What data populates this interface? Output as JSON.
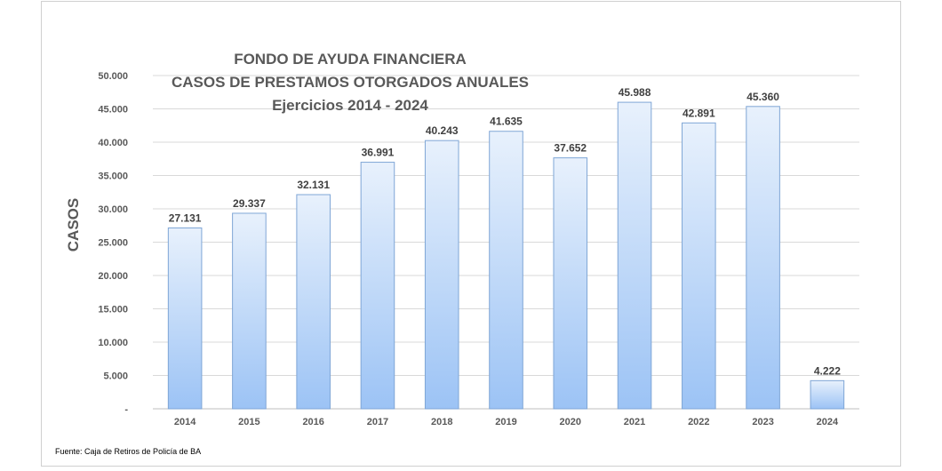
{
  "chart_data": {
    "type": "bar",
    "title_lines": [
      "FONDO DE AYUDA FINANCIERA",
      "CASOS DE PRESTAMOS OTORGADOS ANUALES",
      "Ejercicios  2014 - 2024"
    ],
    "ylabel": "CASOS",
    "xlabel": "",
    "categories": [
      "2014",
      "2015",
      "2016",
      "2017",
      "2018",
      "2019",
      "2020",
      "2021",
      "2022",
      "2023",
      "2024"
    ],
    "values": [
      27131,
      29337,
      32131,
      36991,
      40243,
      41635,
      37652,
      45988,
      42891,
      45360,
      4222
    ],
    "value_labels": [
      "27.131",
      "29.337",
      "32.131",
      "36.991",
      "40.243",
      "41.635",
      "37.652",
      "45.988",
      "42.891",
      "45.360",
      "4.222"
    ],
    "ylim": [
      0,
      50000
    ],
    "yticks": [
      0,
      5000,
      10000,
      15000,
      20000,
      25000,
      30000,
      35000,
      40000,
      45000,
      50000
    ],
    "ytick_labels": [
      "-",
      "5.000",
      "10.000",
      "15.000",
      "20.000",
      "25.000",
      "30.000",
      "35.000",
      "40.000",
      "45.000",
      "50.000"
    ],
    "grid": true,
    "bar_fill_top": "#e8f1fc",
    "bar_fill_bottom": "#9cc3f5",
    "bar_stroke": "#7fa6d6",
    "source": "Fuente: Caja de Retiros de Policía de BA"
  }
}
